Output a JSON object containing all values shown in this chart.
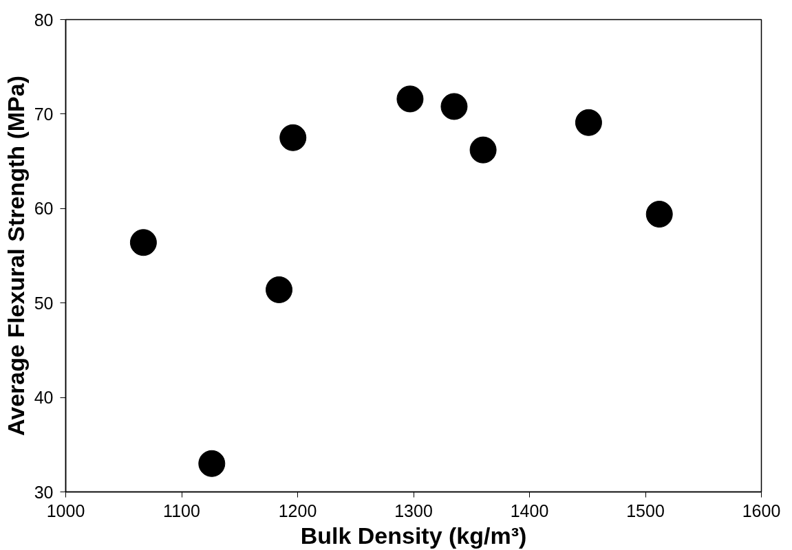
{
  "chart_data": {
    "type": "scatter",
    "xlabel": "Bulk Density (kg/m³)",
    "ylabel": "Average Flexural Strength (MPa)",
    "x": [
      1067,
      1126,
      1184,
      1196,
      1297,
      1335,
      1360,
      1451,
      1512
    ],
    "series": [
      {
        "color": "#000000",
        "values": [
          56.4,
          33.0,
          51.4,
          67.5,
          71.6,
          70.8,
          66.2,
          69.1,
          59.4
        ]
      }
    ],
    "xlim": [
      1000,
      1600
    ],
    "ylim": [
      30,
      80
    ],
    "xticks": [
      1000,
      1100,
      1200,
      1300,
      1400,
      1500,
      1600
    ],
    "yticks": [
      30,
      40,
      50,
      60,
      70,
      80
    ],
    "grid": false,
    "marker": "circle"
  }
}
